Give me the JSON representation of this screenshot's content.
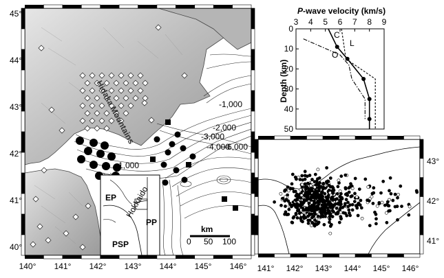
{
  "main_map": {
    "lat_labels": [
      "45°",
      "44°",
      "43°",
      "42°",
      "41°",
      "40°"
    ],
    "lon_labels": [
      "140°",
      "141°",
      "142°",
      "143°",
      "144°",
      "145°",
      "146°"
    ],
    "hidaka_label": "Hidaka Mountains",
    "plate_labels": {
      "ep": "EP",
      "psp": "PSP",
      "pp": "PP"
    },
    "contour_labels": [
      "-1,000",
      "-2,000",
      "-3,000",
      "-4,000",
      "-6,000"
    ],
    "inset_line_label": "Hokkaido",
    "scale": {
      "unit": "km",
      "ticks": [
        "0",
        "50",
        "100"
      ]
    }
  },
  "velocity_chart": {
    "title_italic": "P",
    "title_rest": "-wave velocity (km/s)",
    "ylabel": "Depth (km)",
    "xlim": [
      3,
      9
    ],
    "ylim": [
      0,
      50
    ],
    "xticks": [
      "3",
      "4",
      "5",
      "6",
      "7",
      "8",
      "9"
    ],
    "yticks": [
      "0",
      "10",
      "20",
      "30",
      "40",
      "50"
    ],
    "series_labels": {
      "c": "C",
      "l": "L",
      "o": "O"
    }
  },
  "chart_data": {
    "type": "line",
    "title": "P-wave velocity (km/s)",
    "xlabel": "P-wave velocity (km/s)",
    "ylabel": "Depth (km)",
    "xlim": [
      3,
      9
    ],
    "ylim": [
      0,
      50
    ],
    "y_inverted": true,
    "series": [
      {
        "name": "C",
        "style": "solid",
        "points": [
          [
            5.2,
            0
          ],
          [
            5.8,
            9
          ],
          [
            6.5,
            15
          ],
          [
            7.6,
            25
          ],
          [
            8.0,
            35
          ],
          [
            8.0,
            45
          ],
          [
            8.0,
            50
          ]
        ]
      },
      {
        "name": "L",
        "style": "dashed",
        "points": [
          [
            6.1,
            0
          ],
          [
            6.4,
            15
          ],
          [
            8.4,
            25
          ],
          [
            8.4,
            50
          ]
        ]
      },
      {
        "name": "O",
        "style": "dashdot",
        "points": [
          [
            3.5,
            5
          ],
          [
            6.0,
            13
          ],
          [
            6.6,
            18
          ],
          [
            6.8,
            25
          ],
          [
            7.7,
            35
          ],
          [
            7.7,
            45
          ]
        ]
      }
    ]
  },
  "seis_map": {
    "lat_labels": [
      "43°",
      "42°",
      "41°"
    ],
    "lon_labels": [
      "141°",
      "142°",
      "143°",
      "144°",
      "145°",
      "146°"
    ]
  }
}
